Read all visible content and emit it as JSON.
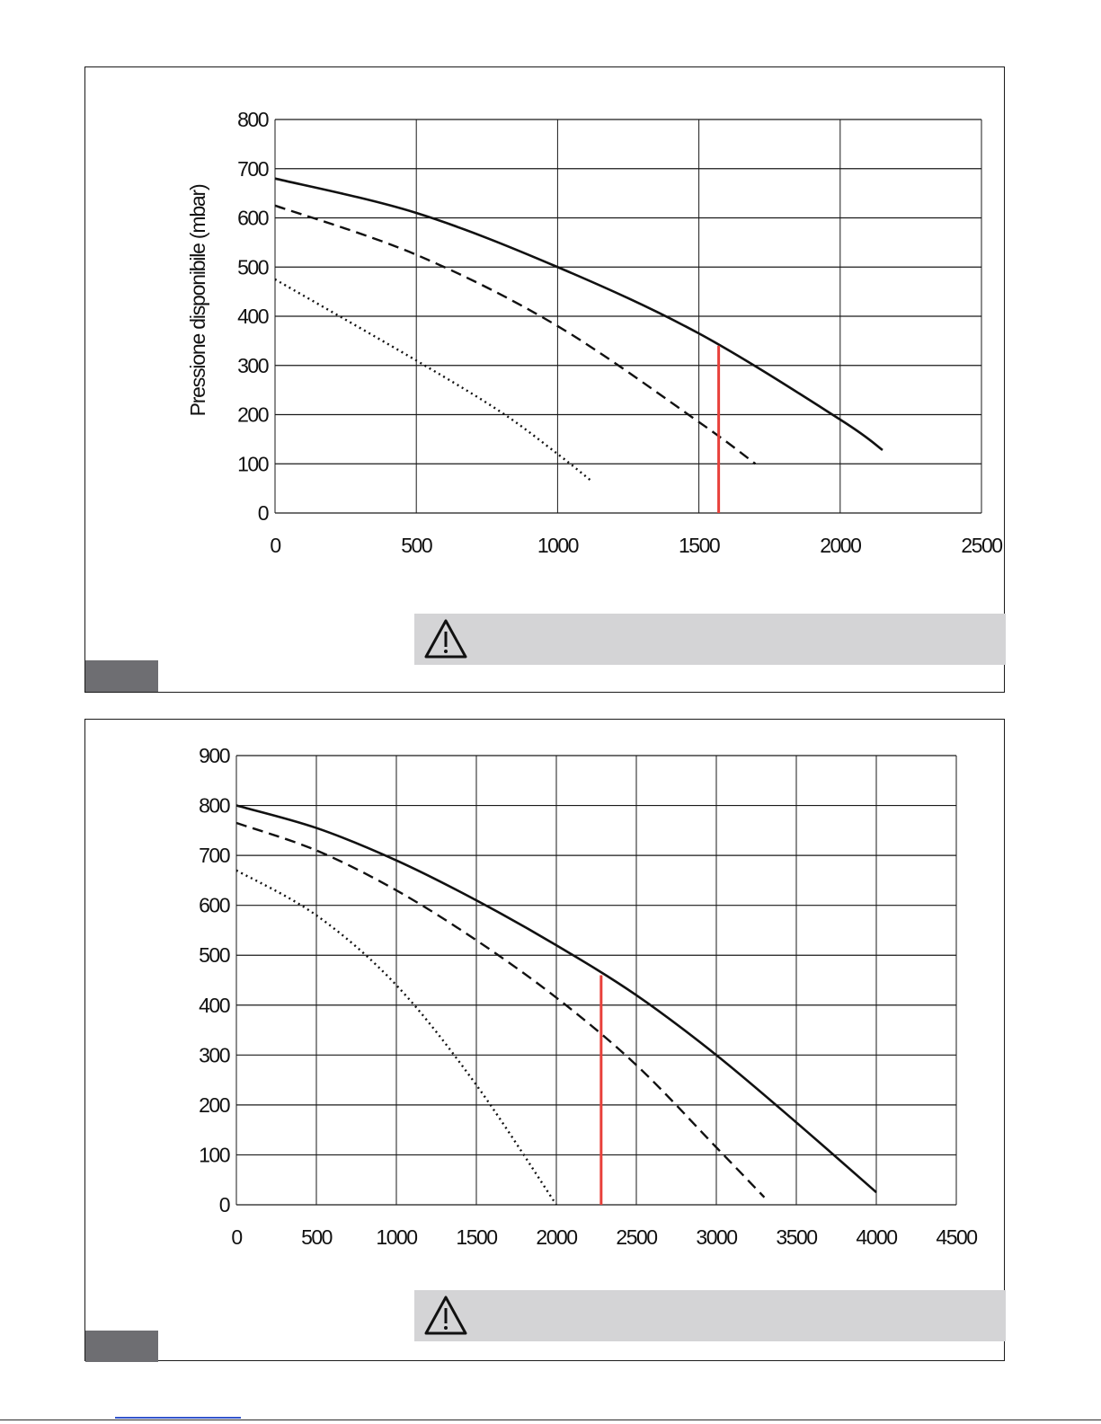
{
  "chart_data": [
    {
      "type": "line",
      "title": "",
      "xlabel": "",
      "ylabel": "Pressione disponibile (mbar)",
      "xlim": [
        0,
        2500
      ],
      "ylim": [
        0,
        800
      ],
      "xticks": [
        "0",
        "500",
        "1000",
        "1500",
        "2000",
        "2500"
      ],
      "yticks": [
        "0",
        "100",
        "200",
        "300",
        "400",
        "500",
        "600",
        "700",
        "800"
      ],
      "grid": true,
      "series": [
        {
          "style": "solid",
          "x": [
            0,
            500,
            1000,
            1500,
            2000,
            2150
          ],
          "y": [
            680,
            610,
            500,
            365,
            190,
            128
          ]
        },
        {
          "style": "dashed",
          "x": [
            0,
            500,
            1000,
            1500,
            1700
          ],
          "y": [
            625,
            525,
            380,
            185,
            100
          ]
        },
        {
          "style": "dotted",
          "x": [
            0,
            500,
            800,
            1000,
            1120
          ],
          "y": [
            475,
            310,
            205,
            120,
            65
          ]
        }
      ],
      "markers": [
        {
          "color": "#e8403a",
          "x": 1570,
          "y_from": 0,
          "y_to": 340
        }
      ]
    },
    {
      "type": "line",
      "title": "",
      "xlabel": "",
      "ylabel": "",
      "xlim": [
        0,
        4500
      ],
      "ylim": [
        0,
        900
      ],
      "xticks": [
        "0",
        "500",
        "1000",
        "1500",
        "2000",
        "2500",
        "3000",
        "3500",
        "4000",
        "4500"
      ],
      "yticks": [
        "0",
        "100",
        "200",
        "300",
        "400",
        "500",
        "600",
        "700",
        "800",
        "900"
      ],
      "grid": true,
      "series": [
        {
          "style": "solid",
          "x": [
            0,
            500,
            1000,
            1500,
            2000,
            2500,
            3000,
            3500,
            4000
          ],
          "y": [
            800,
            755,
            690,
            610,
            520,
            420,
            300,
            165,
            25
          ]
        },
        {
          "style": "dashed",
          "x": [
            0,
            500,
            1000,
            1500,
            2000,
            2500,
            3000,
            3300
          ],
          "y": [
            765,
            710,
            630,
            530,
            415,
            280,
            115,
            15
          ]
        },
        {
          "style": "dotted",
          "x": [
            0,
            500,
            1000,
            1500,
            2000
          ],
          "y": [
            670,
            580,
            440,
            240,
            0
          ]
        }
      ],
      "markers": [
        {
          "color": "#e8403a",
          "x": 2280,
          "y_from": 0,
          "y_to": 460
        }
      ]
    }
  ],
  "colors": {
    "line": "#111111",
    "grid": "#1a1a1a",
    "marker": "#e8403a",
    "warning_bg": "#d4d4d6",
    "tab": "#6e6e72"
  },
  "icons": {
    "warning": "warning-triangle-icon"
  }
}
